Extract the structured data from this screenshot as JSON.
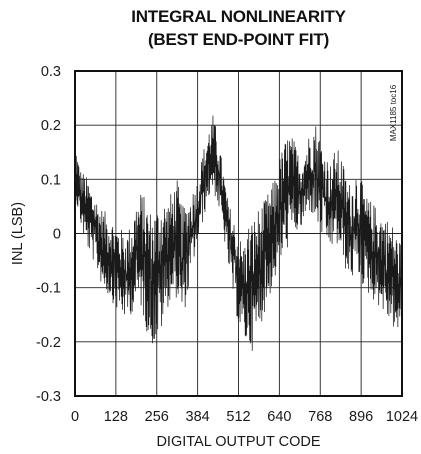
{
  "chart_data": {
    "type": "line",
    "title": [
      "INTEGRAL NONLINEARITY",
      "(BEST END-POINT FIT)"
    ],
    "xlabel": "DIGITAL OUTPUT CODE",
    "ylabel": "INL (LSB)",
    "annotation": "MAX1185 toc16",
    "xlim": [
      0,
      1024
    ],
    "ylim": [
      -0.3,
      0.3
    ],
    "x_ticks": [
      0,
      128,
      256,
      384,
      512,
      640,
      768,
      896,
      1024
    ],
    "x_tick_labels": [
      "0",
      "128",
      "256",
      "384",
      "512",
      "640",
      "768",
      "896",
      "1024"
    ],
    "y_ticks": [
      0.3,
      0.2,
      0.1,
      0,
      -0.1,
      -0.2,
      -0.3
    ],
    "y_tick_labels": [
      "0.3",
      "0.2",
      "0.1",
      "0",
      "-0.1",
      "-0.2",
      "-0.3"
    ],
    "grid": true,
    "line_color": "#1a1a1a",
    "series": [
      {
        "x_step": 16,
        "envelope": {
          "x": [
            0,
            16,
            32,
            48,
            64,
            80,
            96,
            112,
            128,
            144,
            160,
            176,
            192,
            208,
            224,
            240,
            256,
            272,
            288,
            304,
            320,
            336,
            352,
            368,
            384,
            400,
            416,
            432,
            448,
            464,
            480,
            496,
            512,
            528,
            544,
            560,
            576,
            592,
            608,
            624,
            640,
            656,
            672,
            688,
            704,
            720,
            736,
            752,
            768,
            784,
            800,
            816,
            832,
            848,
            864,
            880,
            896,
            912,
            928,
            944,
            960,
            976,
            992,
            1008,
            1024
          ],
          "max": [
            0.17,
            0.12,
            0.11,
            0.09,
            0.07,
            0.05,
            0.04,
            0.03,
            0.02,
            0.01,
            0.0,
            0.02,
            0.06,
            0.08,
            0.06,
            0.04,
            0.05,
            0.07,
            0.06,
            0.08,
            0.1,
            0.05,
            0.06,
            0.08,
            0.1,
            0.15,
            0.19,
            0.22,
            0.18,
            0.12,
            0.06,
            0.03,
            0.0,
            -0.02,
            0.02,
            0.03,
            0.05,
            0.06,
            0.08,
            0.1,
            0.14,
            0.17,
            0.19,
            0.17,
            0.14,
            0.16,
            0.19,
            0.21,
            0.18,
            0.15,
            0.13,
            0.16,
            0.15,
            0.11,
            0.09,
            0.12,
            0.1,
            0.07,
            0.06,
            0.05,
            0.04,
            0.03,
            0.02,
            0.0,
            -0.02
          ],
          "min": [
            0.07,
            0.02,
            -0.02,
            -0.04,
            -0.06,
            -0.09,
            -0.11,
            -0.12,
            -0.14,
            -0.15,
            -0.16,
            -0.15,
            -0.13,
            -0.14,
            -0.18,
            -0.21,
            -0.2,
            -0.18,
            -0.14,
            -0.12,
            -0.12,
            -0.16,
            -0.12,
            -0.06,
            -0.02,
            0.02,
            0.06,
            0.08,
            0.05,
            0.0,
            -0.06,
            -0.12,
            -0.17,
            -0.2,
            -0.21,
            -0.22,
            -0.18,
            -0.15,
            -0.12,
            -0.09,
            -0.06,
            -0.04,
            -0.02,
            0.0,
            0.0,
            0.02,
            0.04,
            0.02,
            0.0,
            -0.02,
            -0.03,
            -0.02,
            -0.04,
            -0.07,
            -0.09,
            -0.07,
            -0.09,
            -0.11,
            -0.12,
            -0.13,
            -0.14,
            -0.16,
            -0.17,
            -0.19,
            -0.2
          ]
        }
      }
    ]
  }
}
